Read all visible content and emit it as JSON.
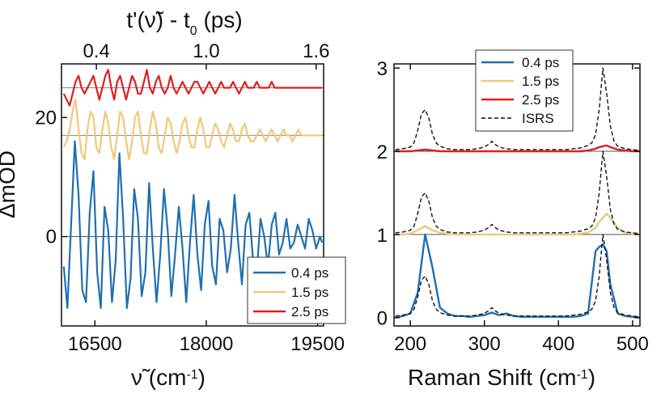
{
  "chart_data": [
    {
      "type": "line",
      "xlabel_parts": {
        "symbol": "ν̃",
        "unit_open": " (cm",
        "exponent": "-1",
        "unit_close": ")"
      },
      "ylabel": "ΔmOD",
      "top_axis_label_parts": {
        "pre": "t'(ν̃) - t",
        "subscript": "0",
        "post": " (ps)"
      },
      "xlim": [
        16050,
        19580
      ],
      "ylim": [
        -15,
        29
      ],
      "x_ticks": [
        16500,
        18000,
        19500
      ],
      "x_tick_labels": [
        "16500",
        "18000",
        "19500"
      ],
      "y_ticks": [
        0,
        20
      ],
      "y_tick_labels": [
        "0",
        "20"
      ],
      "top_ticks": [
        {
          "label": "0.4",
          "x": 16520
        },
        {
          "label": "1.0",
          "x": 18000
        },
        {
          "label": "1.6",
          "x": 19480
        }
      ],
      "baselines": [
        0,
        17,
        25
      ],
      "legend_position": "bottom-right",
      "series": [
        {
          "name": "0.4 ps",
          "color": "#1f6fb0",
          "offset": 0,
          "x": [
            16080,
            16130,
            16180,
            16230,
            16280,
            16330,
            16380,
            16430,
            16480,
            16530,
            16580,
            16630,
            16680,
            16730,
            16780,
            16830,
            16880,
            16930,
            16980,
            17030,
            17080,
            17130,
            17180,
            17230,
            17280,
            17330,
            17380,
            17430,
            17480,
            17530,
            17580,
            17630,
            17680,
            17730,
            17780,
            17830,
            17880,
            17930,
            17980,
            18030,
            18080,
            18130,
            18180,
            18230,
            18280,
            18330,
            18380,
            18430,
            18480,
            18530,
            18580,
            18630,
            18680,
            18730,
            18780,
            18830,
            18880,
            18930,
            18980,
            19030,
            19080,
            19130,
            19180,
            19230,
            19280,
            19330,
            19380,
            19430,
            19480,
            19530,
            19560
          ],
          "y": [
            -5,
            -12,
            2,
            16,
            7,
            -9,
            -11,
            4,
            11,
            -6,
            -12,
            5,
            1,
            -11,
            -4,
            14,
            3,
            -12,
            -7,
            8,
            3,
            -10,
            -6,
            9,
            -2,
            -11,
            -3,
            8,
            1,
            -10,
            -3,
            5,
            -2,
            -11,
            -1,
            7,
            -3,
            -9,
            2,
            6,
            -5,
            -8,
            3,
            1,
            -6,
            -2,
            7,
            -1,
            -8,
            2,
            4,
            -4,
            -6,
            3,
            0,
            -5,
            2,
            4,
            -3,
            -1,
            3,
            -2,
            -1,
            2,
            0,
            -2,
            3,
            1,
            -2,
            0,
            -1
          ]
        },
        {
          "name": "1.5 ps",
          "color": "#f0c878",
          "offset": 17,
          "x": [
            16080,
            16120,
            16160,
            16200,
            16240,
            16280,
            16320,
            16360,
            16400,
            16440,
            16480,
            16520,
            16560,
            16600,
            16640,
            16680,
            16720,
            16760,
            16800,
            16840,
            16880,
            16920,
            16960,
            17000,
            17040,
            17080,
            17120,
            17160,
            17200,
            17240,
            17280,
            17320,
            17360,
            17400,
            17440,
            17480,
            17520,
            17560,
            17600,
            17640,
            17680,
            17720,
            17760,
            17800,
            17840,
            17880,
            17920,
            17960,
            18000,
            18040,
            18080,
            18120,
            18160,
            18200,
            18240,
            18280,
            18320,
            18360,
            18400,
            18440,
            18480,
            18520,
            18560,
            18600,
            18640,
            18680,
            18720,
            18760,
            18800,
            18840,
            18880,
            18920,
            18960,
            19000,
            19040,
            19080,
            19120,
            19160,
            19200,
            19240,
            19280,
            19320,
            19360,
            19400,
            19440,
            19480,
            19520,
            19560
          ],
          "y": [
            -2,
            -1,
            1,
            4,
            6,
            1,
            -3,
            -4,
            1,
            4,
            3,
            -2,
            -3,
            1,
            4,
            2,
            -2,
            -4,
            0,
            4,
            3,
            -1,
            -4,
            -1,
            3,
            4,
            0,
            -3,
            -3,
            1,
            4,
            2,
            -2,
            -3,
            0,
            3,
            2,
            -1,
            -3,
            -1,
            2,
            3,
            0,
            -2,
            -2,
            1,
            3,
            1,
            -2,
            -2,
            0,
            2,
            1,
            -1,
            -2,
            0,
            2,
            1,
            -1,
            -1,
            1,
            2,
            0,
            -1,
            -1,
            0,
            1,
            0,
            -1,
            0,
            1,
            0,
            -1,
            0,
            1,
            0,
            0,
            -1,
            0,
            1,
            0,
            0,
            0,
            0,
            0,
            0,
            0,
            0
          ]
        },
        {
          "name": "2.5 ps",
          "color": "#e01e1e",
          "offset": 25,
          "x": [
            16080,
            16120,
            16160,
            16200,
            16240,
            16280,
            16320,
            16360,
            16400,
            16440,
            16480,
            16520,
            16560,
            16600,
            16640,
            16680,
            16720,
            16760,
            16800,
            16840,
            16880,
            16920,
            16960,
            17000,
            17040,
            17080,
            17120,
            17160,
            17200,
            17240,
            17280,
            17320,
            17360,
            17400,
            17440,
            17480,
            17520,
            17560,
            17600,
            17640,
            17680,
            17720,
            17760,
            17800,
            17840,
            17880,
            17920,
            17960,
            18000,
            18040,
            18080,
            18120,
            18160,
            18200,
            18240,
            18280,
            18320,
            18360,
            18400,
            18440,
            18480,
            18520,
            18560,
            18600,
            18640,
            18680,
            18720,
            18760,
            18800,
            18840,
            18880,
            18920,
            18960,
            19000,
            19040,
            19080,
            19120,
            19160,
            19200,
            19240,
            19280,
            19320,
            19360,
            19400,
            19440,
            19480,
            19520,
            19560
          ],
          "y": [
            -1,
            -2,
            -3,
            -1,
            1,
            2,
            0,
            -1,
            0,
            1,
            2,
            0,
            -2,
            0,
            2,
            3,
            0,
            -2,
            1,
            2,
            0,
            -2,
            0,
            2,
            1,
            -1,
            -1,
            1,
            3,
            0,
            -1,
            1,
            2,
            0,
            -1,
            0,
            2,
            0,
            -1,
            0,
            1,
            0,
            -1,
            0,
            1,
            1,
            0,
            -1,
            0,
            1,
            0,
            -1,
            0,
            1,
            0,
            0,
            0,
            1,
            0,
            -1,
            0,
            1,
            0,
            0,
            0,
            1,
            0,
            0,
            0,
            0,
            1,
            0,
            0,
            0,
            0,
            0,
            0,
            0,
            0,
            0,
            0,
            0,
            0,
            0,
            0,
            0,
            0,
            0
          ]
        }
      ]
    },
    {
      "type": "line",
      "xlabel_parts": {
        "text": "Raman Shift (cm",
        "exponent": "-1",
        "close": ")"
      },
      "ylabel": "",
      "xlim": [
        178,
        510
      ],
      "ylim": [
        -0.1,
        3.05
      ],
      "x_ticks": [
        200,
        300,
        400,
        500
      ],
      "x_tick_labels": [
        "200",
        "300",
        "400",
        "500"
      ],
      "y_ticks": [
        0,
        1,
        2,
        3
      ],
      "y_tick_labels": [
        "0",
        "1",
        "2",
        "3"
      ],
      "legend_position": "top-center",
      "series": [
        {
          "name": "0.4 ps",
          "color": "#1f6fb0",
          "style": "solid",
          "offset": 0,
          "x": [
            180,
            190,
            200,
            210,
            220,
            230,
            240,
            250,
            260,
            270,
            280,
            290,
            300,
            310,
            320,
            330,
            340,
            350,
            360,
            370,
            380,
            390,
            400,
            410,
            420,
            430,
            440,
            450,
            455,
            460,
            465,
            470,
            480,
            490,
            500,
            510
          ],
          "y": [
            0,
            0.02,
            0.05,
            0.3,
            1.0,
            0.6,
            0.12,
            0.05,
            0.02,
            0.02,
            0.01,
            0.02,
            0.03,
            0.06,
            0.03,
            0.05,
            0.02,
            0.01,
            0.01,
            0.01,
            0.01,
            0.01,
            0.01,
            0.01,
            0.01,
            0.02,
            0.05,
            0.8,
            0.85,
            0.88,
            0.8,
            0.4,
            0.05,
            0.02,
            0.01,
            0.0
          ]
        },
        {
          "name": "1.5 ps",
          "color": "#f0c878",
          "style": "solid",
          "offset": 1,
          "x": [
            180,
            190,
            200,
            210,
            220,
            230,
            240,
            250,
            260,
            270,
            280,
            290,
            300,
            310,
            320,
            330,
            340,
            350,
            360,
            370,
            380,
            390,
            400,
            410,
            420,
            430,
            440,
            450,
            455,
            460,
            465,
            470,
            480,
            490,
            500,
            510
          ],
          "y": [
            0,
            0,
            0.01,
            0.05,
            0.1,
            0.05,
            0.02,
            0.01,
            0,
            0,
            0,
            0,
            0,
            0,
            0,
            0,
            0,
            0,
            0,
            0,
            0,
            0,
            0,
            0,
            0,
            0.01,
            0.02,
            0.08,
            0.15,
            0.2,
            0.25,
            0.2,
            0.08,
            0.02,
            0.01,
            0.0
          ]
        },
        {
          "name": "2.5 ps",
          "color": "#e01e1e",
          "style": "solid",
          "offset": 2,
          "x": [
            180,
            190,
            200,
            210,
            220,
            230,
            240,
            250,
            260,
            270,
            280,
            290,
            300,
            310,
            320,
            330,
            340,
            350,
            360,
            370,
            380,
            390,
            400,
            410,
            420,
            430,
            440,
            450,
            455,
            460,
            465,
            470,
            480,
            490,
            500,
            510
          ],
          "y": [
            0,
            0,
            0,
            0.01,
            0.02,
            0.01,
            0,
            0,
            0,
            0,
            0,
            0,
            0,
            0,
            0,
            0,
            0,
            0,
            0,
            0,
            0,
            0,
            0,
            0,
            0,
            0,
            0.01,
            0.03,
            0.05,
            0.06,
            0.07,
            0.05,
            0.02,
            0.01,
            0,
            0
          ]
        },
        {
          "name": "ISRS",
          "color": "#111111",
          "style": "dashed",
          "offsets": [
            0,
            1,
            2
          ],
          "x": [
            180,
            190,
            200,
            205,
            210,
            215,
            220,
            225,
            230,
            235,
            240,
            250,
            260,
            270,
            280,
            290,
            300,
            305,
            310,
            315,
            320,
            330,
            340,
            350,
            360,
            370,
            380,
            390,
            400,
            410,
            420,
            430,
            440,
            445,
            450,
            455,
            460,
            465,
            470,
            475,
            480,
            490,
            500,
            510
          ],
          "y": [
            0.02,
            0.03,
            0.05,
            0.1,
            0.25,
            0.45,
            0.5,
            0.4,
            0.2,
            0.1,
            0.06,
            0.03,
            0.02,
            0.02,
            0.02,
            0.03,
            0.05,
            0.08,
            0.12,
            0.08,
            0.05,
            0.03,
            0.02,
            0.02,
            0.02,
            0.02,
            0.02,
            0.02,
            0.02,
            0.02,
            0.03,
            0.04,
            0.07,
            0.1,
            0.2,
            0.5,
            1.0,
            0.7,
            0.3,
            0.12,
            0.06,
            0.03,
            0.02,
            0.01
          ]
        }
      ]
    }
  ]
}
